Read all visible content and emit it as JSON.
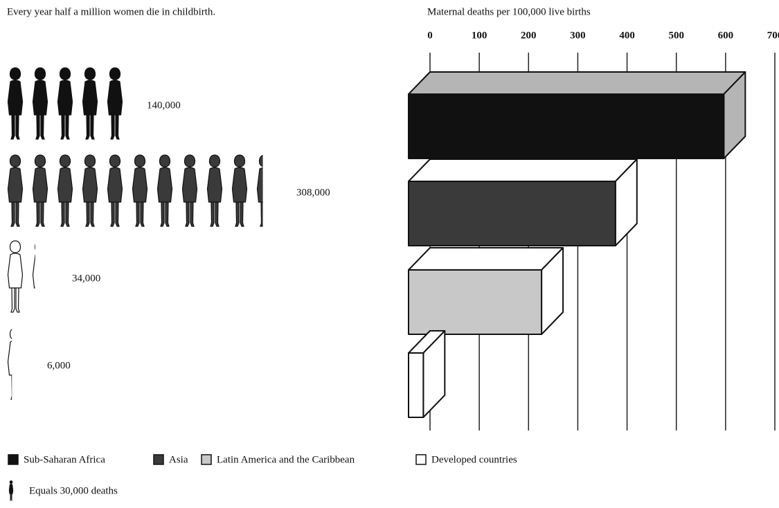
{
  "chart_data": [
    {
      "type": "pictogram",
      "title": "Every year half a million women die in childbirth.",
      "values": [
        140000,
        308000,
        34000,
        6000
      ],
      "value_labels": [
        "140,000",
        "308,000",
        "34,000",
        "6,000"
      ],
      "colors": [
        "#111111",
        "#3a3a3a",
        "#ffffff",
        "#ffffff"
      ],
      "unit": {
        "value": 30000,
        "label": "Equals 30,000 deaths"
      }
    },
    {
      "type": "bar3d",
      "title": "Maternal deaths per 100,000 live births",
      "categories": [
        "Sub-Saharan Africa",
        "Asia",
        "Latin America and the Caribbean",
        "Developed countries"
      ],
      "values": [
        640,
        420,
        270,
        30
      ],
      "colors": [
        "#111111",
        "#3a3a3a",
        "#c8c8c8",
        "#ffffff"
      ],
      "top_colors": [
        "#b5b5b5",
        "#ffffff",
        "#ffffff",
        "#ffffff"
      ],
      "xlim": [
        0,
        700
      ],
      "xticks": [
        0,
        100,
        200,
        300,
        400,
        500,
        600,
        700
      ],
      "grid": true
    }
  ]
}
